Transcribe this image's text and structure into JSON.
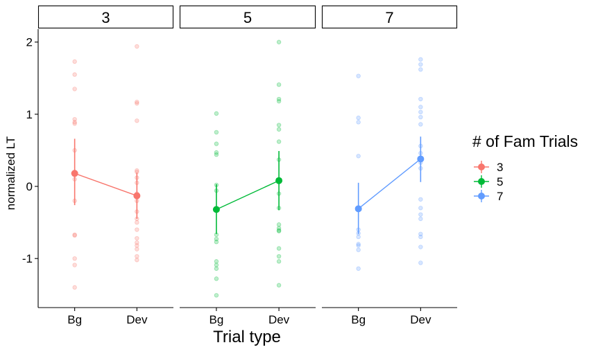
{
  "chart_data": {
    "type": "scatter",
    "facet_labels": [
      "3",
      "5",
      "7"
    ],
    "categories": [
      "Bg",
      "Dev"
    ],
    "xlabel": "Trial type",
    "ylabel": "normalized LT",
    "ylim": [
      -1.68,
      2.18
    ],
    "yticks": [
      "-1",
      "0",
      "1",
      "2"
    ],
    "legend": {
      "title": "# of Fam Trials",
      "position": "right",
      "items": [
        {
          "label": "3",
          "color": "#F8766D"
        },
        {
          "label": "5",
          "color": "#00BA38"
        },
        {
          "label": "7",
          "color": "#619CFF"
        }
      ]
    },
    "series": [
      {
        "facet": "3",
        "color": "#F8766D",
        "mean": [
          0.18,
          -0.13
        ],
        "ci_low": [
          -0.26,
          -0.45
        ],
        "ci_high": [
          0.66,
          0.19
        ],
        "raw": [
          [
            1.73,
            1.55,
            1.35,
            0.93,
            0.89,
            0.87,
            0.5,
            0.2,
            0.1,
            -0.2,
            -0.67,
            -0.68,
            -1.0,
            -1.09,
            -1.4
          ],
          [
            1.94,
            1.17,
            1.15,
            0.91,
            0.22,
            0.2,
            0.12,
            0.05,
            -0.1,
            -0.2,
            -0.35,
            -0.45,
            -0.5,
            -0.6,
            -0.72,
            -0.78,
            -0.82,
            -0.87,
            -0.97,
            -1.02
          ]
        ]
      },
      {
        "facet": "5",
        "color": "#00BA38",
        "mean": [
          -0.32,
          0.08
        ],
        "ci_low": [
          -0.66,
          -0.33
        ],
        "ci_high": [
          0.03,
          0.49
        ],
        "raw": [
          [
            1.01,
            0.75,
            0.59,
            0.47,
            0.44,
            0.02,
            -0.06,
            -0.67,
            -0.73,
            -0.77,
            -1.04,
            -1.09,
            -1.14,
            -1.28,
            -1.51
          ],
          [
            2.0,
            1.41,
            1.21,
            1.18,
            0.85,
            0.79,
            0.62,
            0.37,
            -0.1,
            -0.3,
            -0.53,
            -0.58,
            -0.61,
            -0.62,
            -0.86,
            -0.97,
            -1.04,
            -1.37
          ]
        ]
      },
      {
        "facet": "7",
        "color": "#619CFF",
        "mean": [
          -0.31,
          0.38
        ],
        "ci_low": [
          -0.66,
          0.06
        ],
        "ci_high": [
          0.05,
          0.69
        ],
        "raw": [
          [
            1.53,
            0.95,
            0.89,
            0.42,
            -0.6,
            -0.65,
            -0.7,
            -0.8,
            -0.82,
            -0.88,
            -1.14
          ],
          [
            1.76,
            1.69,
            1.62,
            1.21,
            1.1,
            1.03,
            0.96,
            0.86,
            0.56,
            0.46,
            0.33,
            0.25,
            -0.18,
            -0.3,
            -0.39,
            -0.45,
            -0.66,
            -0.7,
            -0.84,
            -1.06
          ]
        ]
      }
    ]
  }
}
